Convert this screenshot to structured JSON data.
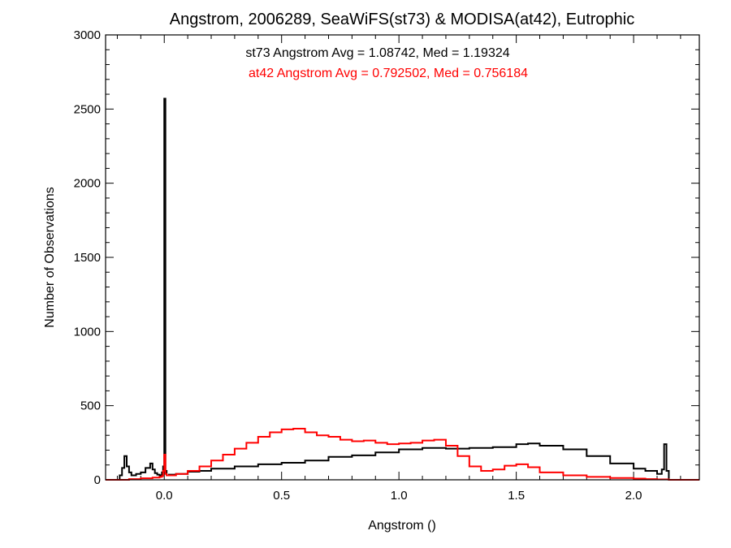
{
  "chart_data": {
    "type": "line",
    "title": "Angstrom, 2006289, SeaWiFS(st73) & MODISA(at42), Eutrophic",
    "xlabel": "Angstrom ()",
    "ylabel": "Number of Observations",
    "xlim": [
      -0.25,
      2.28
    ],
    "ylim": [
      0,
      3000
    ],
    "x_ticks": [
      0.0,
      0.5,
      1.0,
      1.5,
      2.0
    ],
    "x_tick_labels": [
      "0.0",
      "0.5",
      "1.0",
      "1.5",
      "2.0"
    ],
    "y_ticks": [
      0,
      500,
      1000,
      1500,
      2000,
      2500,
      3000
    ],
    "y_tick_labels": [
      "0",
      "500",
      "1000",
      "1500",
      "2000",
      "2500",
      "3000"
    ],
    "grid": false,
    "annotations": [
      {
        "text": "st73 Angstrom Avg = 1.08742, Med = 1.19324",
        "color": "#000000"
      },
      {
        "text": "at42 Angstrom Avg = 0.792502, Med = 0.756184",
        "color": "#ff0000"
      }
    ],
    "series": [
      {
        "color": "#000000",
        "x": [
          -0.25,
          -0.2,
          -0.19,
          -0.18,
          -0.17,
          -0.16,
          -0.15,
          -0.14,
          -0.12,
          -0.1,
          -0.08,
          -0.06,
          -0.05,
          -0.04,
          -0.03,
          -0.02,
          -0.01,
          -0.005,
          0.0,
          0.005,
          0.01,
          0.02,
          0.05,
          0.1,
          0.15,
          0.2,
          0.3,
          0.4,
          0.5,
          0.6,
          0.7,
          0.8,
          0.9,
          1.0,
          1.1,
          1.2,
          1.3,
          1.4,
          1.5,
          1.55,
          1.6,
          1.7,
          1.8,
          1.9,
          2.0,
          2.05,
          2.1,
          2.12,
          2.13,
          2.14,
          2.15,
          2.16,
          2.28
        ],
        "values": [
          0,
          0,
          30,
          80,
          160,
          90,
          50,
          30,
          40,
          50,
          80,
          110,
          70,
          45,
          35,
          30,
          50,
          90,
          2570,
          60,
          30,
          35,
          40,
          55,
          60,
          75,
          90,
          105,
          115,
          130,
          155,
          165,
          185,
          205,
          215,
          210,
          215,
          220,
          240,
          245,
          230,
          205,
          160,
          110,
          75,
          60,
          40,
          70,
          240,
          60,
          0,
          0,
          0
        ]
      },
      {
        "color": "#ff0000",
        "x": [
          -0.25,
          -0.2,
          -0.15,
          -0.1,
          -0.05,
          -0.02,
          -0.01,
          -0.005,
          0.0,
          0.005,
          0.01,
          0.05,
          0.1,
          0.15,
          0.2,
          0.25,
          0.3,
          0.35,
          0.4,
          0.45,
          0.5,
          0.55,
          0.6,
          0.65,
          0.7,
          0.75,
          0.8,
          0.85,
          0.9,
          0.95,
          1.0,
          1.05,
          1.1,
          1.15,
          1.2,
          1.25,
          1.3,
          1.35,
          1.4,
          1.45,
          1.5,
          1.55,
          1.6,
          1.7,
          1.8,
          1.9,
          2.0,
          2.05,
          2.1,
          2.15,
          2.28
        ],
        "values": [
          0,
          0,
          5,
          10,
          15,
          20,
          25,
          60,
          170,
          40,
          30,
          40,
          60,
          90,
          130,
          170,
          210,
          250,
          290,
          320,
          340,
          345,
          320,
          300,
          290,
          270,
          260,
          265,
          250,
          240,
          245,
          250,
          265,
          270,
          230,
          160,
          90,
          60,
          70,
          95,
          105,
          85,
          50,
          30,
          20,
          12,
          8,
          5,
          3,
          0,
          0
        ]
      }
    ]
  }
}
